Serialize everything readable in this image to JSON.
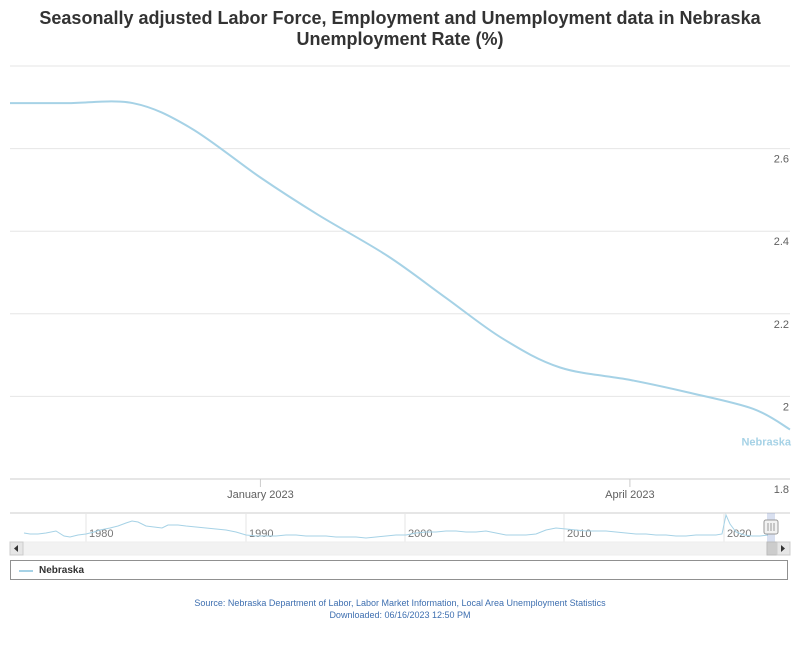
{
  "title_line1": "Seasonally adjusted Labor Force, Employment and Unemployment data in Nebraska",
  "title_line2": "Unemployment Rate (%)",
  "colors": {
    "series": "#a6d2e6",
    "grid": "#e6e6e6",
    "axis_text": "#606060",
    "source": "#3e6fb0"
  },
  "chart_data": {
    "type": "line",
    "series": [
      {
        "name": "Nebraska",
        "x": [
          "2022-11-01",
          "2022-11-15",
          "2022-12-01",
          "2022-12-15",
          "2023-01-01",
          "2023-01-15",
          "2023-02-01",
          "2023-02-15",
          "2023-03-01",
          "2023-03-15",
          "2023-04-01",
          "2023-04-15",
          "2023-05-01",
          "2023-05-10"
        ],
        "values": [
          2.71,
          2.71,
          2.71,
          2.65,
          2.53,
          2.44,
          2.34,
          2.24,
          2.14,
          2.07,
          2.04,
          2.01,
          1.97,
          1.92
        ]
      }
    ],
    "ylim": [
      1.8,
      2.8
    ],
    "yticks": [
      "2.6",
      "2.4",
      "2.2",
      "2",
      "1.8"
    ],
    "xticks": [
      "January 2023",
      "April 2023"
    ],
    "series_label": "Nebraska",
    "legend_position": "bottom",
    "grid": true
  },
  "navigator": {
    "labels": [
      "1980",
      "1990",
      "2000",
      "2010",
      "2020"
    ]
  },
  "legend": {
    "label": "Nebraska"
  },
  "source": {
    "line1": "Source: Nebraska Department of Labor, Labor Market Information, Local Area Unemployment Statistics",
    "line2": "Downloaded: 06/16/2023 12:50 PM"
  }
}
